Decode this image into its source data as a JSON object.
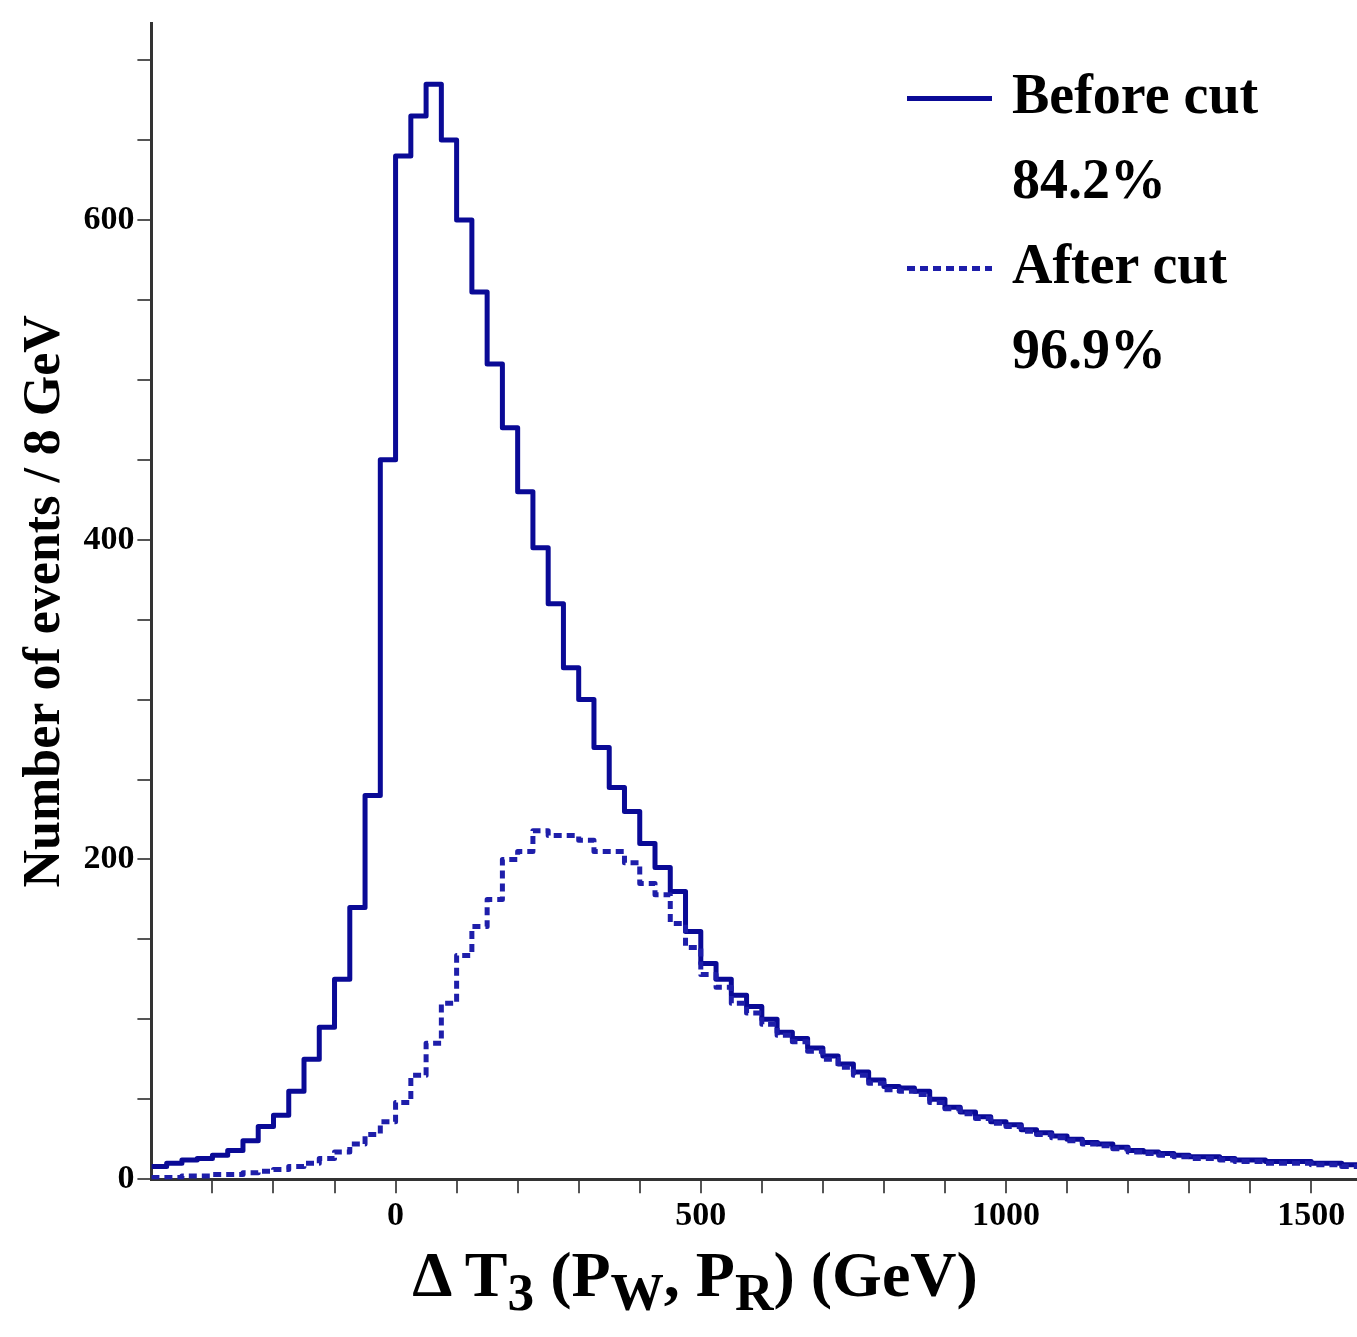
{
  "chart_data": {
    "type": "histogram",
    "xlabel": "Δ T$_{3}$ (P$_{W}$, P$_{R}$) (GeV)",
    "ylabel": "Number of events / 8 GeV",
    "bins": [
      -400,
      -375,
      -350,
      -325,
      -300,
      -275,
      -250,
      -225,
      -200,
      -175,
      -150,
      -125,
      -100,
      -75,
      -50,
      -25,
      0,
      25,
      50,
      75,
      100,
      125,
      150,
      175,
      200,
      225,
      250,
      275,
      300,
      325,
      350,
      375,
      400,
      425,
      450,
      475,
      500,
      525,
      550,
      575,
      600,
      625,
      650,
      675,
      700,
      725,
      750,
      775,
      800,
      825,
      850,
      875,
      900,
      925,
      950,
      975,
      1000,
      1025,
      1050,
      1075,
      1100,
      1125,
      1150,
      1175,
      1200,
      1225,
      1250,
      1275,
      1300,
      1325,
      1350,
      1375,
      1400,
      1425,
      1450,
      1475,
      1500,
      1525,
      1550,
      1575
    ],
    "series": [
      {
        "name": "Before cut",
        "color": "#0a0a96",
        "line_style": "solid",
        "values": [
          8,
          10,
          12,
          13,
          15,
          18,
          24,
          33,
          40,
          55,
          75,
          95,
          125,
          170,
          240,
          450,
          640,
          665,
          685,
          650,
          600,
          555,
          510,
          470,
          430,
          395,
          360,
          320,
          300,
          270,
          245,
          230,
          210,
          195,
          180,
          155,
          135,
          125,
          115,
          108,
          100,
          92,
          88,
          82,
          77,
          72,
          67,
          62,
          58,
          57,
          55,
          50,
          45,
          42,
          39,
          36,
          34,
          31,
          29,
          27,
          25,
          23,
          22,
          20,
          18,
          17,
          16,
          15,
          14,
          14,
          13,
          12,
          12,
          11,
          11,
          11,
          10,
          10,
          9
        ]
      },
      {
        "name": "After cut",
        "color": "#1e1eaa",
        "line_style": "dotted",
        "values": [
          1,
          1,
          2,
          2,
          3,
          3,
          4,
          5,
          6,
          8,
          10,
          13,
          17,
          22,
          28,
          36,
          48,
          65,
          85,
          110,
          140,
          158,
          175,
          200,
          205,
          218,
          215,
          215,
          212,
          205,
          205,
          198,
          185,
          178,
          160,
          145,
          128,
          120,
          110,
          104,
          97,
          90,
          86,
          80,
          75,
          70,
          65,
          60,
          56,
          55,
          53,
          48,
          44,
          41,
          38,
          35,
          33,
          30,
          28,
          26,
          24,
          22,
          21,
          19,
          17,
          16,
          15,
          14,
          13,
          13,
          12,
          11,
          11,
          10,
          10,
          10,
          9,
          9,
          8
        ]
      }
    ],
    "annotations": [
      "84.2%",
      "96.9%"
    ],
    "xlim": [
      -400,
      1575
    ],
    "xticks": [
      {
        "value": -300,
        "label": null
      },
      {
        "value": -200,
        "label": null
      },
      {
        "value": -100,
        "label": null
      },
      0,
      {
        "value": 100,
        "label": null
      },
      {
        "value": 200,
        "label": null
      },
      {
        "value": 300,
        "label": null
      },
      {
        "value": 400,
        "label": null
      },
      500,
      {
        "value": 600,
        "label": null
      },
      {
        "value": 700,
        "label": null
      },
      {
        "value": 800,
        "label": null
      },
      {
        "value": 900,
        "label": null
      },
      1000,
      {
        "value": 1100,
        "label": null
      },
      {
        "value": 1200,
        "label": null
      },
      {
        "value": 1300,
        "label": null
      },
      {
        "value": 1400,
        "label": null
      },
      1500
    ],
    "ylim": [
      0,
      723
    ],
    "yticks": [
      0,
      {
        "value": 50,
        "label": null
      },
      {
        "value": 100,
        "label": null
      },
      {
        "value": 150,
        "label": null
      },
      200,
      {
        "value": 250,
        "label": null
      },
      {
        "value": 300,
        "label": null
      },
      {
        "value": 350,
        "label": null
      },
      400,
      {
        "value": 450,
        "label": null
      },
      {
        "value": 500,
        "label": null
      },
      {
        "value": 550,
        "label": null
      },
      600,
      {
        "value": 650,
        "label": null
      },
      {
        "value": 700,
        "label": null
      }
    ],
    "grid": false,
    "legend": "top right"
  }
}
